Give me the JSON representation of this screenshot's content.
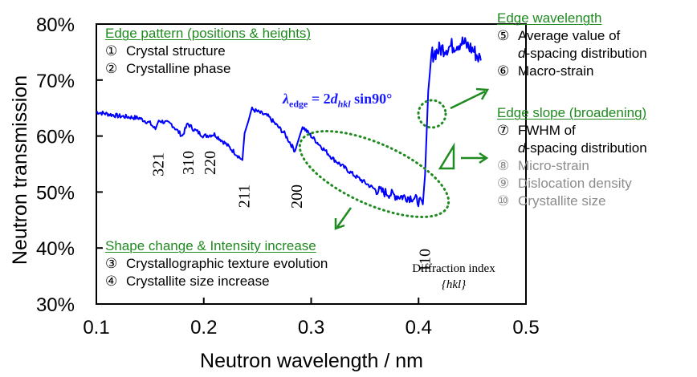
{
  "chart_data": {
    "type": "line",
    "title": "",
    "xlabel": "Neutron wavelength / nm",
    "ylabel": "Neutron transmission",
    "xlim": [
      0.1,
      0.5
    ],
    "ylim": [
      0.3,
      0.8
    ],
    "x_ticks": [
      "0.1",
      "0.2",
      "0.3",
      "0.4",
      "0.5"
    ],
    "x_tick_values": [
      0.1,
      0.2,
      0.3,
      0.4,
      0.5
    ],
    "y_ticks": [
      "30%",
      "40%",
      "50%",
      "60%",
      "70%",
      "80%"
    ],
    "y_tick_values": [
      0.3,
      0.4,
      0.5,
      0.6,
      0.7,
      0.8
    ],
    "grid": false,
    "series": [
      {
        "name": "Transmission spectrum",
        "color": "#0000ff",
        "x": [
          0.1,
          0.12,
          0.14,
          0.15,
          0.155,
          0.158,
          0.17,
          0.18,
          0.185,
          0.19,
          0.2,
          0.21,
          0.22,
          0.236,
          0.238,
          0.245,
          0.26,
          0.275,
          0.285,
          0.287,
          0.292,
          0.3,
          0.32,
          0.34,
          0.36,
          0.38,
          0.395,
          0.404,
          0.406,
          0.409,
          0.412,
          0.42,
          0.43,
          0.44,
          0.45,
          0.458
        ],
        "y": [
          0.643,
          0.636,
          0.632,
          0.623,
          0.612,
          0.628,
          0.621,
          0.6,
          0.622,
          0.613,
          0.6,
          0.603,
          0.587,
          0.557,
          0.605,
          0.648,
          0.635,
          0.605,
          0.573,
          0.586,
          0.617,
          0.6,
          0.56,
          0.53,
          0.504,
          0.493,
          0.49,
          0.478,
          0.53,
          0.68,
          0.745,
          0.755,
          0.76,
          0.768,
          0.755,
          0.735
        ]
      }
    ],
    "peak_labels": [
      {
        "label": "321",
        "x": 0.158
      },
      {
        "label": "310",
        "x": 0.186
      },
      {
        "label": "220",
        "x": 0.206
      },
      {
        "label": "211",
        "x": 0.238
      },
      {
        "label": "200",
        "x": 0.287
      },
      {
        "label": "110",
        "x": 0.406
      }
    ],
    "annotations": {
      "formula": {
        "lambda": "λ",
        "edge_sub": "edge",
        "eq": " = 2",
        "d": "d",
        "hkl_sub": "hkl",
        "tail": " sin90°"
      },
      "diffraction_index": {
        "line1": "Diffraction index",
        "line2": "{hkl}"
      }
    }
  },
  "panels": {
    "edge_pattern": {
      "heading": "Edge pattern (positions & heights)",
      "items": [
        {
          "num": "①",
          "text": "Crystal structure"
        },
        {
          "num": "②",
          "text": "Crystalline phase"
        }
      ]
    },
    "shape_change": {
      "heading": "Shape change & Intensity increase",
      "items": [
        {
          "num": "③",
          "text": "Crystallographic texture evolution"
        },
        {
          "num": "④",
          "text": "Crystallite size increase"
        }
      ]
    },
    "edge_wavelength": {
      "heading": "Edge wavelength",
      "item5_num": "⑤",
      "item5_line1": "Average value of",
      "item5_d": "d",
      "item5_line2": "-spacing distribution",
      "item6_num": "⑥",
      "item6_text": "Macro-strain"
    },
    "edge_slope": {
      "heading": "Edge slope (broadening)",
      "item7_num": "⑦",
      "item7_line1": "FWHM of",
      "item7_d": "d",
      "item7_line2": "-spacing distribution",
      "grey_items": [
        {
          "num": "⑧",
          "text": "Micro-strain"
        },
        {
          "num": "⑨",
          "text": "Dislocation density"
        },
        {
          "num": "⑩",
          "text": "Crystallite size"
        }
      ]
    }
  },
  "colors": {
    "series": "#0000ff",
    "annotation_green": "#1f8a1f",
    "grey_text": "#8c8c8c",
    "formula": "#1a1aff"
  }
}
